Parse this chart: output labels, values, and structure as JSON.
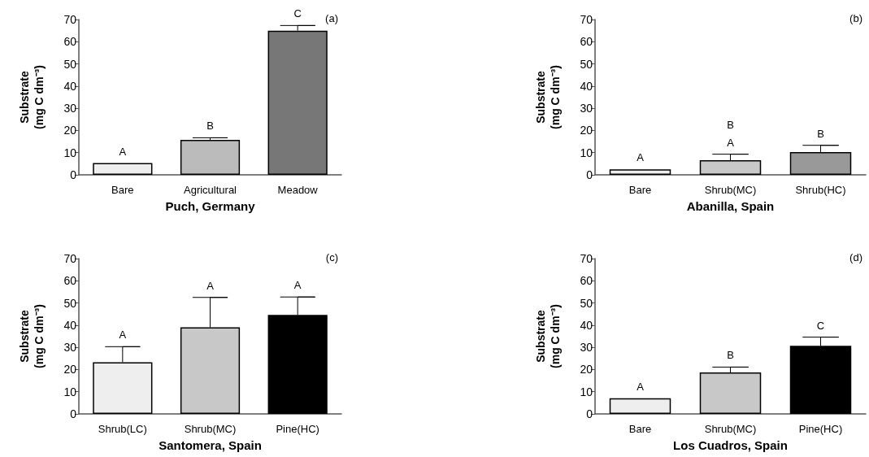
{
  "chart_data": [
    {
      "type": "bar",
      "xlabel": "Puch, Germany",
      "ylabel": "Substrate\n(mg C dm⁻³)",
      "categories": [
        "Bare",
        "Agricultural",
        "Meadow"
      ],
      "values": [
        5.3,
        15.8,
        65
      ],
      "colors": [
        "#eeeeee",
        "#bbbbbb",
        "#777777"
      ],
      "errors": [
        null,
        [
          15.8,
          16.7
        ],
        [
          65,
          67.3
        ]
      ],
      "ylim": [
        0,
        70
      ],
      "yticks": [
        0,
        10,
        20,
        30,
        40,
        50,
        60,
        70
      ],
      "annotations": [
        "(a)",
        {
          "text": "A",
          "x": "Bare",
          "y": 5.3
        },
        {
          "text": "B",
          "x": "Agricultural",
          "y": 16.7
        },
        {
          "text": "C",
          "x": "Meadow",
          "y": 67.3
        }
      ]
    },
    {
      "type": "bar",
      "xlabel": "Abanilla, Spain",
      "ylabel": "Substrate\n(mg C dm⁻³)",
      "categories": [
        "Bare",
        "Shrub(MC)",
        "Shrub(HC)"
      ],
      "values": [
        2.5,
        6.6,
        10.3
      ],
      "colors": [
        "#eeeeee",
        "#c8c8c8",
        "#999999"
      ],
      "errors": [
        null,
        [
          6.6,
          9.3
        ],
        [
          10.3,
          13.3
        ]
      ],
      "ylim": [
        0,
        70
      ],
      "yticks": [
        0,
        10,
        20,
        30,
        40,
        50,
        60,
        70
      ],
      "annotations": [
        "(b)",
        {
          "text": "A",
          "x": "Bare",
          "y": 2.5
        },
        {
          "text": "A",
          "x": "Shrub(MC)",
          "y": 9.3
        },
        {
          "text": "B",
          "x": "Shrub(MC)",
          "y": 9.3
        },
        {
          "text": "B",
          "x": "Shrub(HC)",
          "y": 13.3
        }
      ]
    },
    {
      "type": "bar",
      "xlabel": "Santomera, Spain",
      "ylabel": "Substrate\n(mg C dm⁻³)",
      "categories": [
        "Shrub(LC)",
        "Shrub(MC)",
        "Pine(HC)"
      ],
      "values": [
        23.3,
        39,
        44.6
      ],
      "colors": [
        "#eeeeee",
        "#c8c8c8",
        "#000000"
      ],
      "errors": [
        [
          23.3,
          30.3
        ],
        [
          39,
          52.5
        ],
        [
          44.6,
          52.7
        ]
      ],
      "ylim": [
        0,
        70
      ],
      "yticks": [
        0,
        10,
        20,
        30,
        40,
        50,
        60,
        70
      ],
      "annotations": [
        "(c)",
        {
          "text": "A",
          "x": "Shrub(LC)",
          "y": 30.3
        },
        {
          "text": "A",
          "x": "Shrub(MC)",
          "y": 52.5
        },
        {
          "text": "A",
          "x": "Pine(HC)",
          "y": 52.7
        }
      ]
    },
    {
      "type": "bar",
      "xlabel": "Los Cuadros, Spain",
      "ylabel": "Substrate\n(mg C dm⁻³)",
      "categories": [
        "Bare",
        "Shrub(MC)",
        "Pine(HC)"
      ],
      "values": [
        7.1,
        18.7,
        30.7
      ],
      "colors": [
        "#eeeeee",
        "#c8c8c8",
        "#000000"
      ],
      "errors": [
        null,
        [
          18.7,
          21.1
        ],
        [
          30.7,
          34.6
        ]
      ],
      "ylim": [
        0,
        70
      ],
      "yticks": [
        0,
        10,
        20,
        30,
        40,
        50,
        60,
        70
      ],
      "annotations": [
        "(d)",
        {
          "text": "A",
          "x": "Bare",
          "y": 7.1
        },
        {
          "text": "B",
          "x": "Shrub(MC)",
          "y": 21.1
        },
        {
          "text": "C",
          "x": "Pine(HC)",
          "y": 34.6
        }
      ]
    }
  ]
}
